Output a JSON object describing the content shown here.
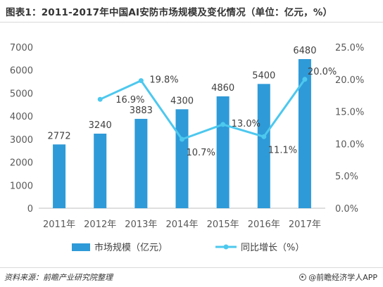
{
  "title": "图表1：2011-2017年中国AI安防市场规模及变化情况（单位：亿元，%）",
  "source": "资料来源：前瞻产业研究院整理",
  "brand": "@前瞻经济学人APP",
  "colors": {
    "bar": "#2e9ad8",
    "line": "#4dc8ee",
    "axis": "#bfbfbf"
  },
  "chart_data": {
    "type": "bar",
    "categories": [
      "2011年",
      "2012年",
      "2013年",
      "2014年",
      "2015年",
      "2016年",
      "2017年"
    ],
    "series": [
      {
        "name": "市场规模（亿元）",
        "type": "bar",
        "axis": "left",
        "values": [
          2772,
          3240,
          3883,
          4300,
          4860,
          5400,
          6480
        ],
        "labels": [
          "2772",
          "3240",
          "3883",
          "4300",
          "4860",
          "5400",
          "6480"
        ]
      },
      {
        "name": "同比增长（%）",
        "type": "line",
        "axis": "right",
        "values": [
          null,
          16.9,
          19.8,
          10.7,
          13.0,
          11.1,
          20.0
        ],
        "labels": [
          "",
          "16.9%",
          "19.8%",
          "10.7%",
          "13.0%",
          "11.1%",
          "20.0%"
        ]
      }
    ],
    "y_left": {
      "min": 0,
      "max": 7000,
      "ticks": [
        0,
        1000,
        2000,
        3000,
        4000,
        5000,
        6000,
        7000
      ],
      "tick_labels": [
        "0",
        "1000",
        "2000",
        "3000",
        "4000",
        "5000",
        "6000",
        "7000"
      ]
    },
    "y_right": {
      "min": 0,
      "max": 25,
      "ticks": [
        0,
        5,
        10,
        15,
        20,
        25
      ],
      "tick_labels": [
        "0.0%",
        "5.0%",
        "10.0%",
        "15.0%",
        "20.0%",
        "25.0%"
      ]
    },
    "grid": false,
    "legend": "bottom"
  }
}
